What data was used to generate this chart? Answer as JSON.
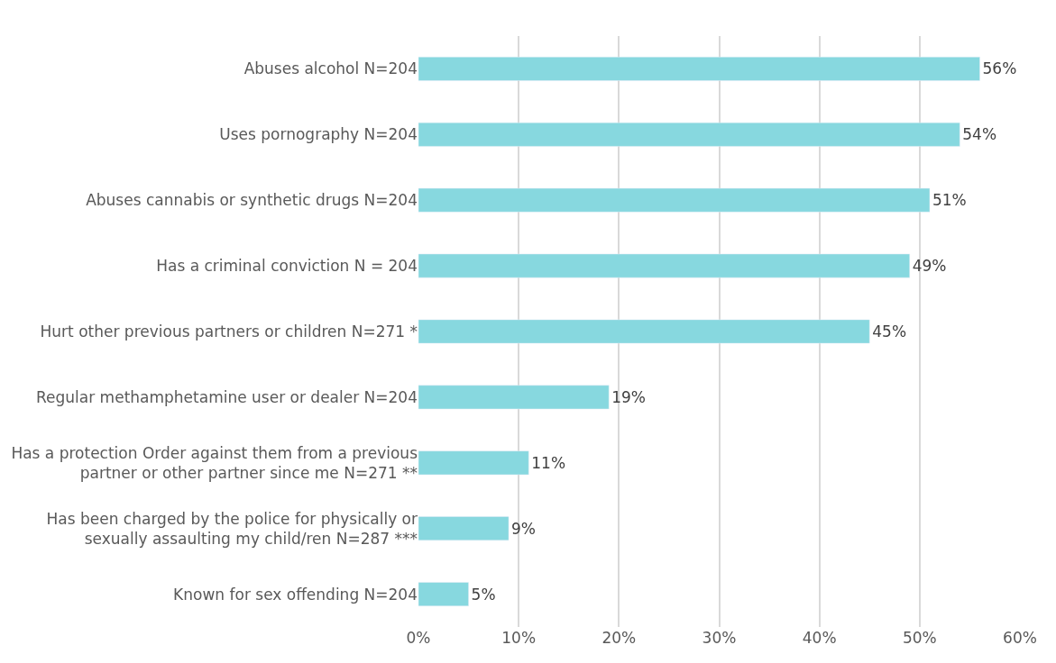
{
  "chart_data": {
    "type": "bar",
    "orientation": "horizontal",
    "categories": [
      "Abuses alcohol N=204",
      "Uses pornography N=204",
      "Abuses cannabis or synthetic drugs N=204",
      "Has a criminal conviction N = 204",
      "Hurt other previous partners or children N=271 *",
      "Regular methamphetamine user or dealer N=204",
      "Has a protection Order against them from a previous partner or other partner since me N=271 **",
      "Has been charged by the police for physically or sexually assaulting my child/ren N=287 ***",
      "Known for sex offending N=204"
    ],
    "values": [
      56,
      54,
      51,
      49,
      45,
      19,
      11,
      9,
      5
    ],
    "value_labels": [
      "56%",
      "54%",
      "51%",
      "49%",
      "45%",
      "19%",
      "11%",
      "9%",
      "5%"
    ],
    "color": "#87d8df",
    "xlim": [
      0,
      60
    ],
    "xticks": [
      {
        "value": 0,
        "label": "0%"
      },
      {
        "value": 10,
        "label": "10%"
      },
      {
        "value": 20,
        "label": "20%"
      },
      {
        "value": 30,
        "label": "30%"
      },
      {
        "value": 40,
        "label": "40%"
      },
      {
        "value": 50,
        "label": "50%"
      },
      {
        "value": 60,
        "label": "60%"
      }
    ],
    "grid": "x"
  }
}
